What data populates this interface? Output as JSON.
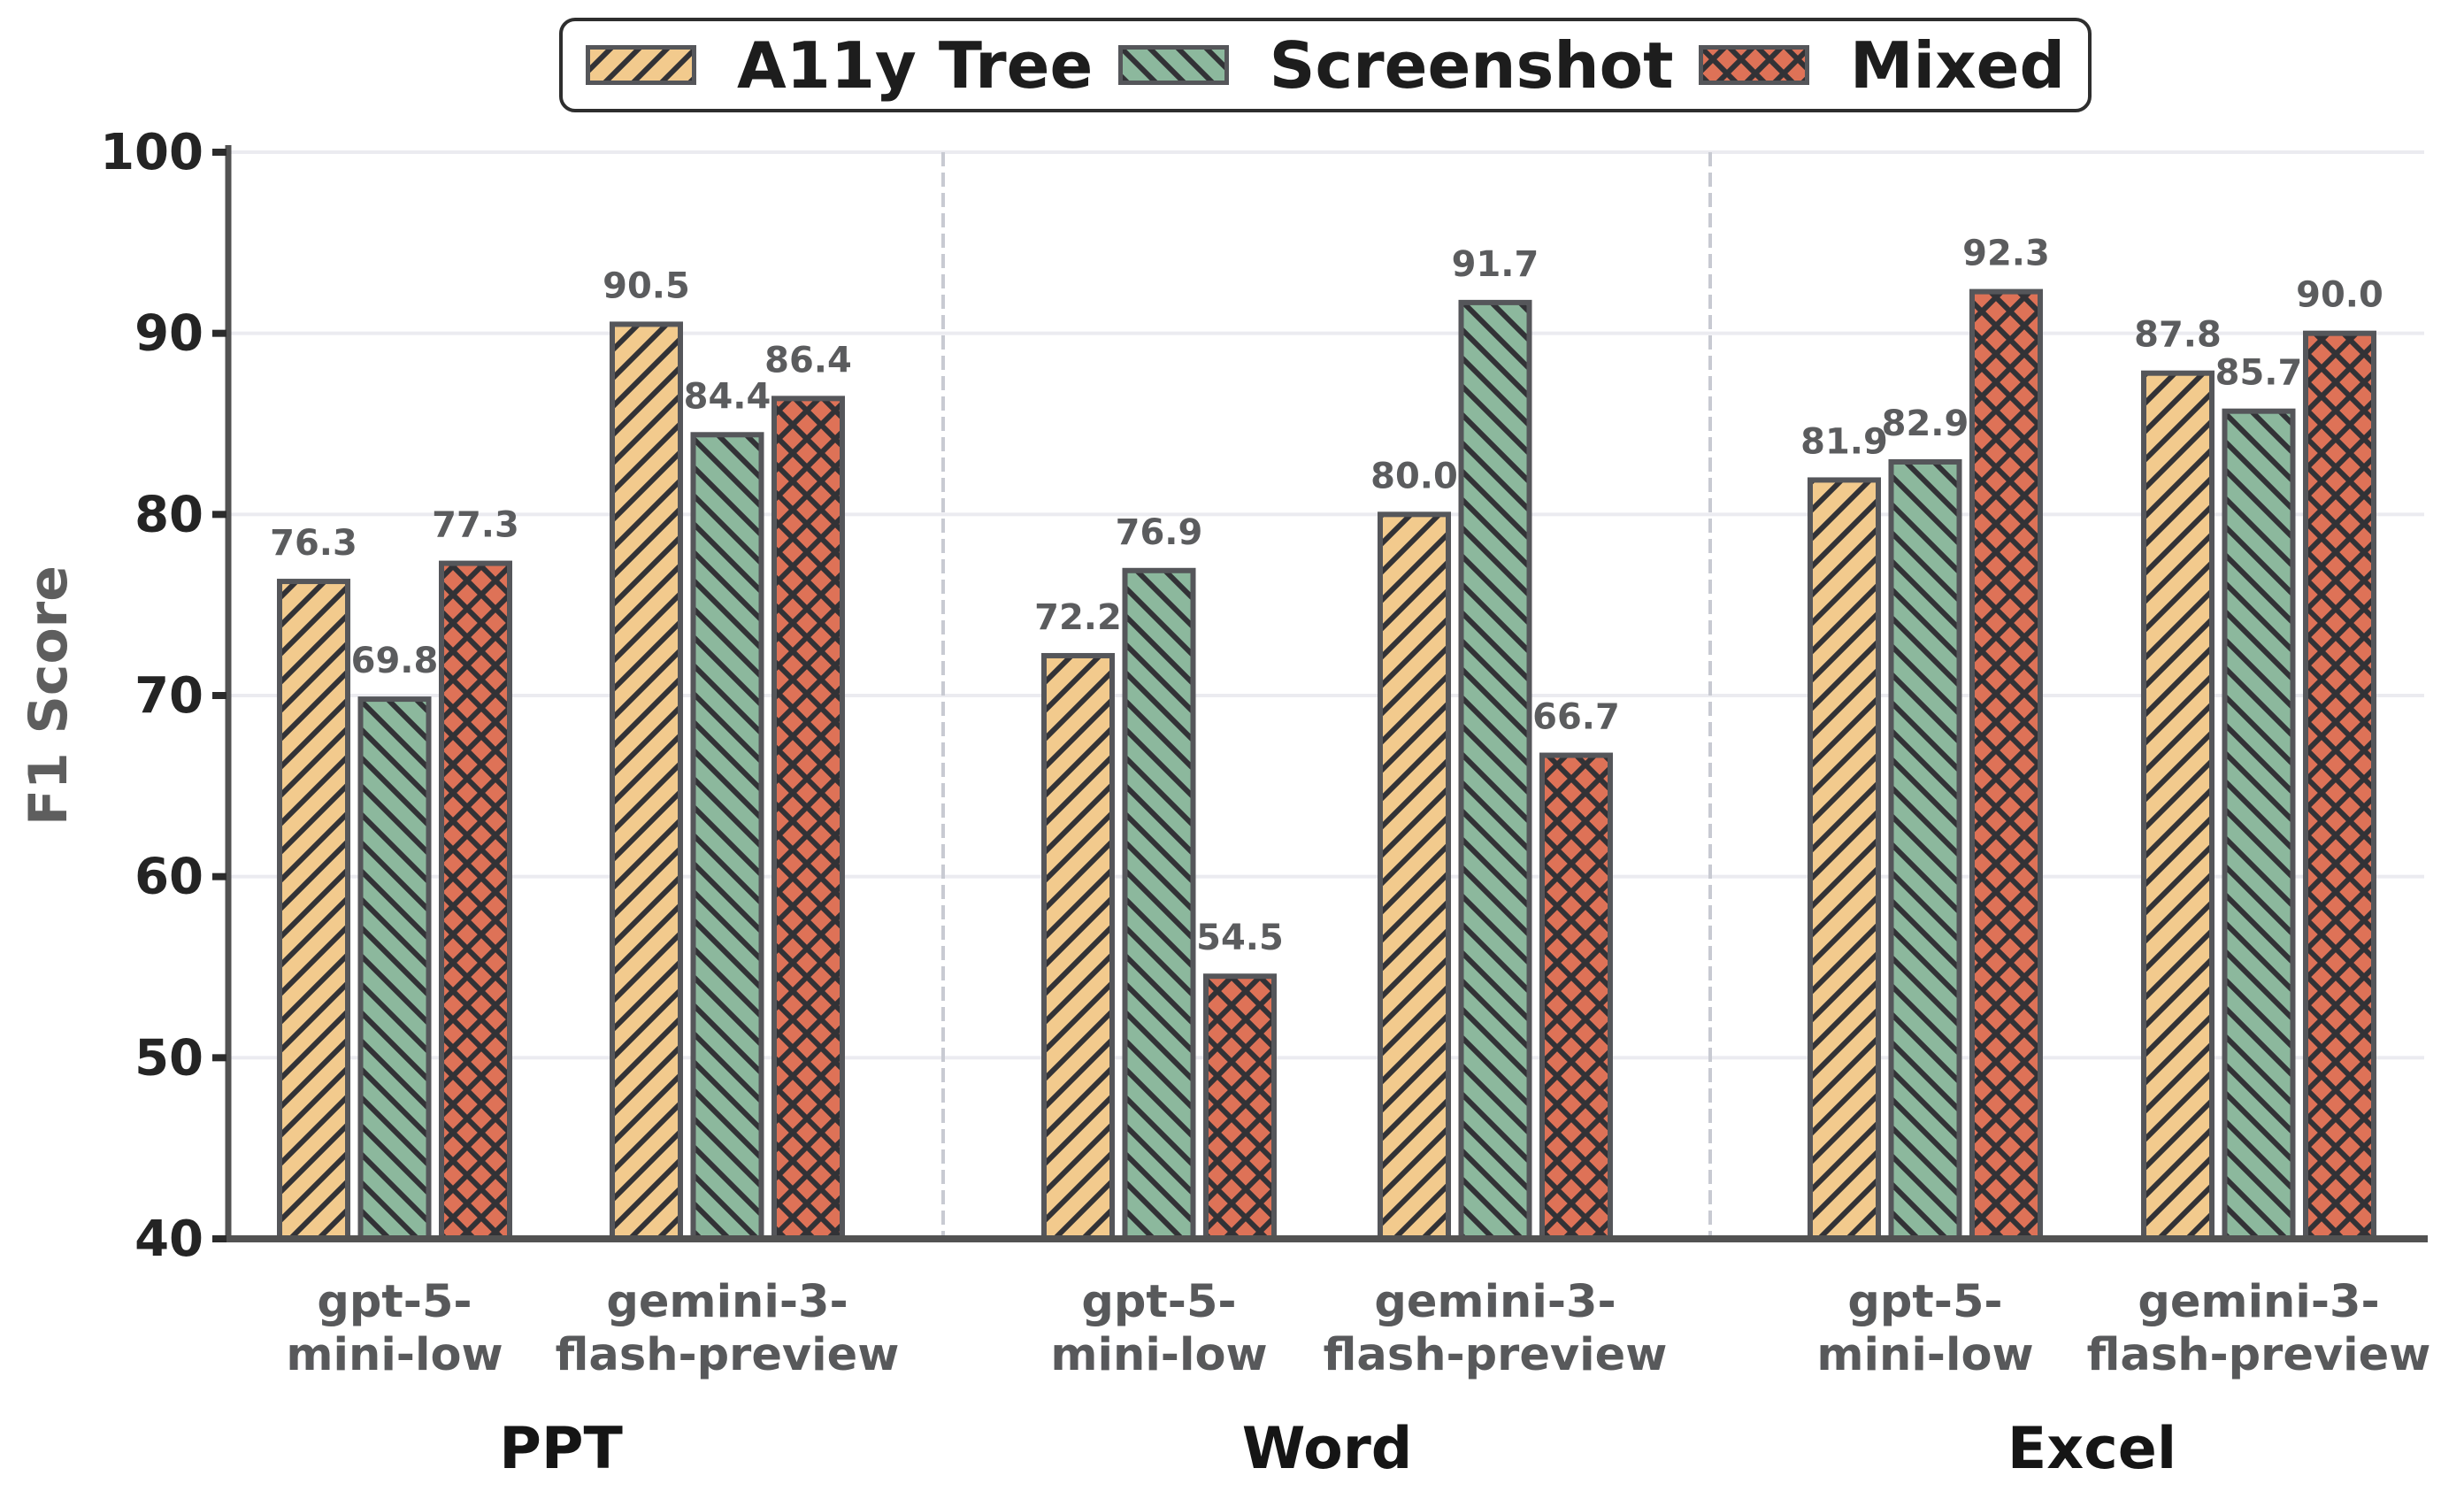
{
  "chart_data": {
    "type": "bar",
    "title": "",
    "ylabel": "F1 Score",
    "ylim": [
      40,
      100
    ],
    "yticks": [
      40,
      50,
      60,
      70,
      80,
      90,
      100
    ],
    "grid": true,
    "legend_position": "top center",
    "series": [
      {
        "name": "A11y Tree",
        "color": "#F2CA8D",
        "hatch": "/"
      },
      {
        "name": "Screenshot",
        "color": "#8CB89D",
        "hatch": "\\"
      },
      {
        "name": "Mixed",
        "color": "#DE7257",
        "hatch": "x"
      }
    ],
    "panels": [
      {
        "name": "PPT",
        "clusters": [
          {
            "model": "gpt-5-mini-low",
            "label_lines": [
              "gpt-5-",
              "mini-low"
            ],
            "values": [
              76.3,
              69.8,
              77.3
            ]
          },
          {
            "model": "gemini-3-flash-preview",
            "label_lines": [
              "gemini-3-",
              "flash-preview"
            ],
            "values": [
              90.5,
              84.4,
              86.4
            ]
          }
        ]
      },
      {
        "name": "Word",
        "clusters": [
          {
            "model": "gpt-5-mini-low",
            "label_lines": [
              "gpt-5-",
              "mini-low"
            ],
            "values": [
              72.2,
              76.9,
              54.5
            ]
          },
          {
            "model": "gemini-3-flash-preview",
            "label_lines": [
              "gemini-3-",
              "flash-preview"
            ],
            "values": [
              80.0,
              91.7,
              66.7
            ]
          }
        ]
      },
      {
        "name": "Excel",
        "clusters": [
          {
            "model": "gpt-5-mini-low",
            "label_lines": [
              "gpt-5-",
              "mini-low"
            ],
            "values": [
              81.9,
              82.9,
              92.3
            ]
          },
          {
            "model": "gemini-3-flash-preview",
            "label_lines": [
              "gemini-3-",
              "flash-preview"
            ],
            "values": [
              87.8,
              85.7,
              90.0
            ]
          }
        ]
      }
    ]
  }
}
